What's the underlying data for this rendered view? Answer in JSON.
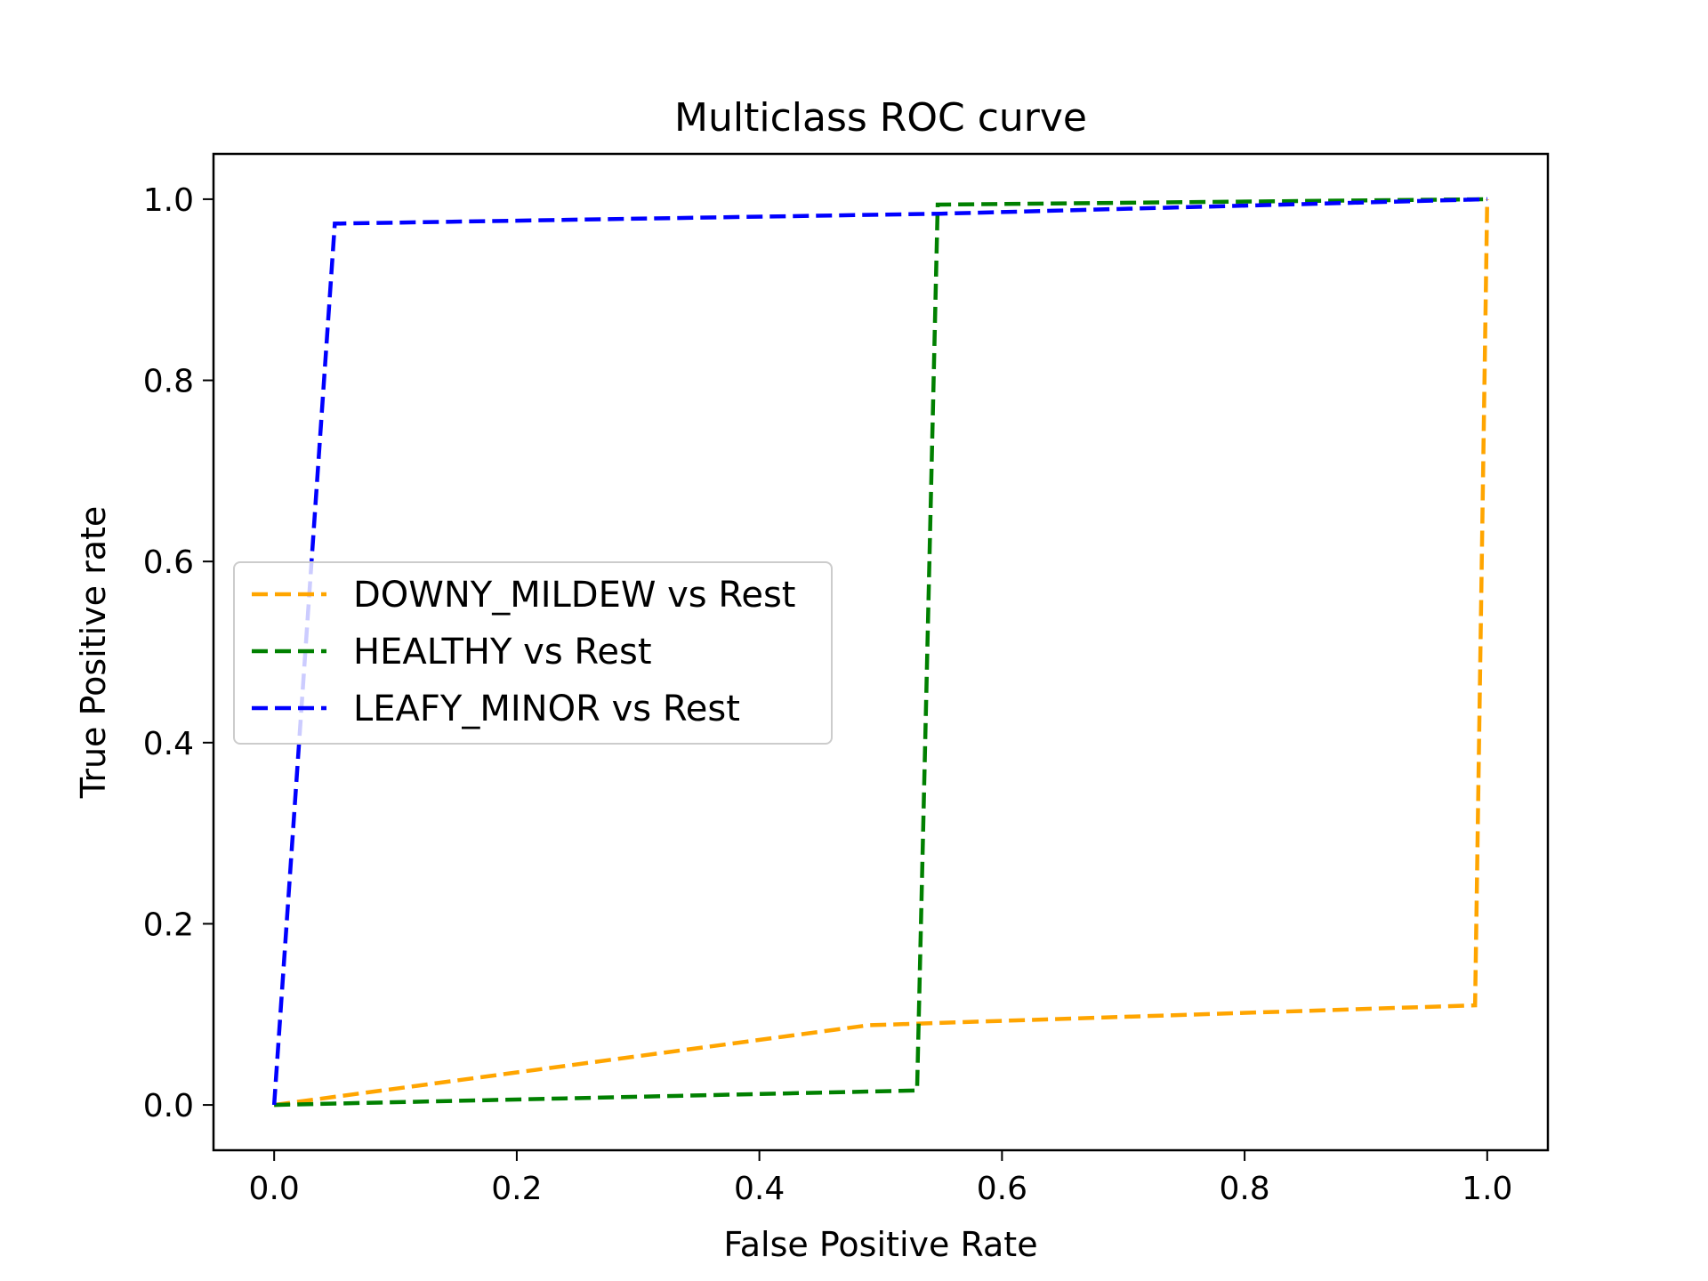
{
  "chart_data": {
    "type": "line",
    "title": "Multiclass ROC curve",
    "xlabel": "False Positive Rate",
    "ylabel": "True Positive rate",
    "xlim": [
      -0.05,
      1.05
    ],
    "ylim": [
      -0.05,
      1.05
    ],
    "xticks": [
      "0.0",
      "0.2",
      "0.4",
      "0.6",
      "0.8",
      "1.0"
    ],
    "yticks": [
      "0.0",
      "0.2",
      "0.4",
      "0.6",
      "0.8",
      "1.0"
    ],
    "grid": false,
    "legend_position": "center-left",
    "series": [
      {
        "name": "DOWNY_MILDEW vs Rest",
        "color": "#FFA500",
        "line_style": "dashed",
        "x": [
          0.0,
          0.49,
          0.99,
          1.0
        ],
        "y": [
          0.0,
          0.088,
          0.11,
          1.0
        ]
      },
      {
        "name": "HEALTHY vs Rest",
        "color": "#008000",
        "line_style": "dashed",
        "x": [
          0.0,
          0.53,
          0.547,
          1.0
        ],
        "y": [
          0.0,
          0.016,
          0.994,
          1.0
        ]
      },
      {
        "name": "LEAFY_MINOR vs Rest",
        "color": "#0000FF",
        "line_style": "dashed",
        "x": [
          0.0,
          0.05,
          0.55,
          1.0
        ],
        "y": [
          0.0,
          0.973,
          0.984,
          1.0
        ]
      }
    ]
  }
}
